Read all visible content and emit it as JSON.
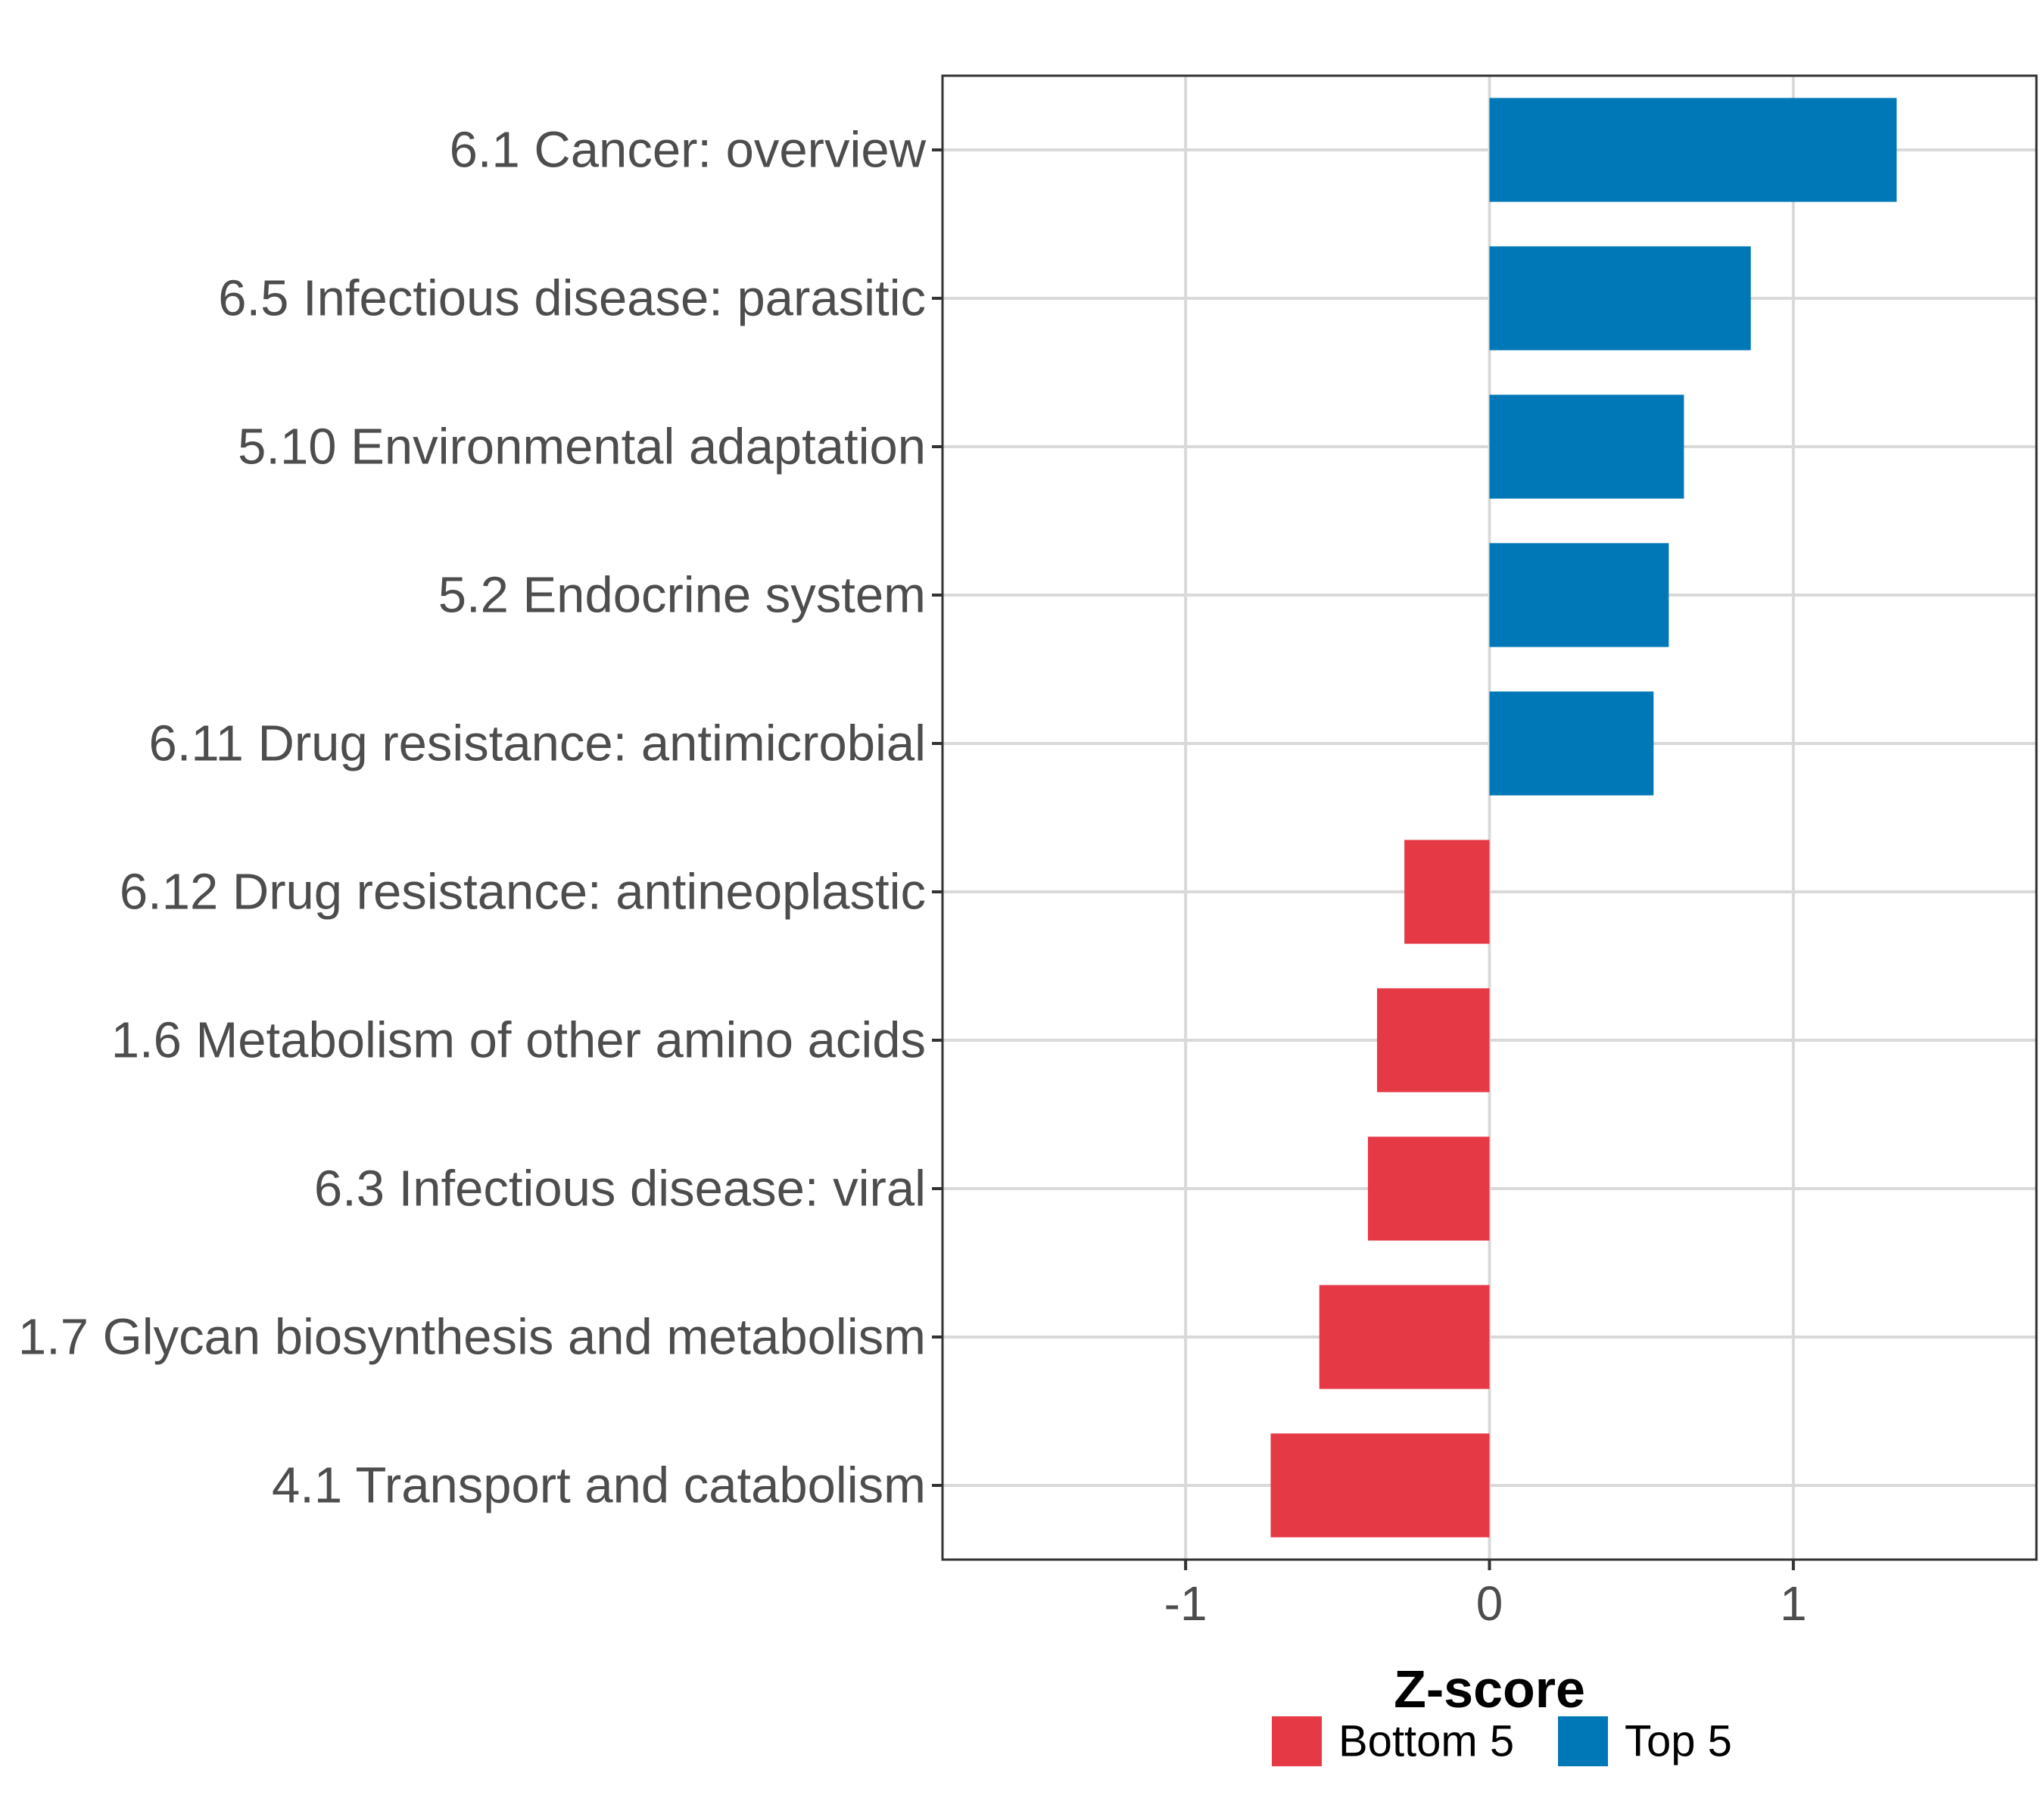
{
  "chart_data": {
    "type": "bar",
    "orientation": "horizontal",
    "title": "",
    "xlabel": "Z-score",
    "ylabel": "",
    "xlim": [
      -1.8,
      1.8
    ],
    "xticks": [
      -1,
      0,
      1
    ],
    "xtick_labels": [
      "-1",
      "0",
      "1"
    ],
    "grid": true,
    "legend_placement": "bottom",
    "categories": [
      "6.1 Cancer: overview",
      "6.5 Infectious disease: parasitic",
      "5.10 Environmental adaptation",
      "5.2 Endocrine system",
      "6.11 Drug resistance: antimicrobial",
      "6.12 Drug resistance: antineoplastic",
      "1.6 Metabolism of other amino acids",
      "6.3 Infectious disease: viral",
      "1.7 Glycan biosynthesis and metabolism",
      "4.1 Transport and catabolism"
    ],
    "values": [
      1.34,
      0.86,
      0.64,
      0.59,
      0.54,
      -0.28,
      -0.37,
      -0.4,
      -0.56,
      -0.72
    ],
    "groups": [
      "Top 5",
      "Top 5",
      "Top 5",
      "Top 5",
      "Top 5",
      "Bottom 5",
      "Bottom 5",
      "Bottom 5",
      "Bottom 5",
      "Bottom 5"
    ],
    "legend": [
      {
        "name": "Bottom 5",
        "color": "#E63946"
      },
      {
        "name": "Top 5",
        "color": "#0077B6"
      }
    ]
  }
}
